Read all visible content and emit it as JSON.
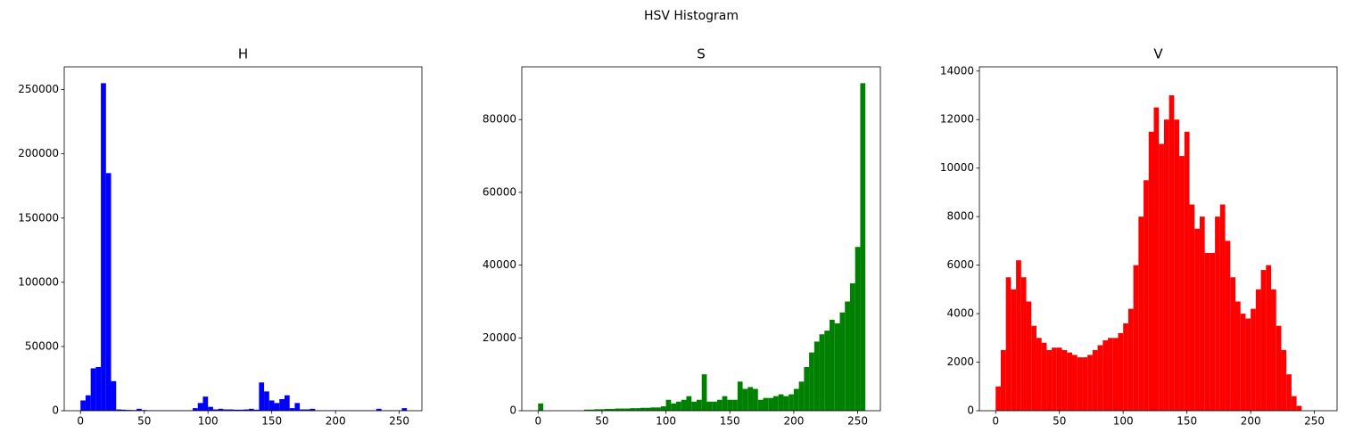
{
  "title": "HSV Histogram",
  "chart_data": [
    {
      "type": "histogram",
      "title": "H",
      "color": "#0000ff",
      "bins": [
        0,
        4,
        8,
        12,
        16,
        20,
        24,
        28,
        32,
        36,
        40,
        44,
        48,
        52,
        56,
        60,
        64,
        68,
        72,
        76,
        80,
        84,
        88,
        92,
        96,
        100,
        104,
        108,
        112,
        116,
        120,
        124,
        128,
        132,
        136,
        140,
        144,
        148,
        152,
        156,
        160,
        164,
        168,
        172,
        176,
        180,
        184,
        188,
        192,
        196,
        200,
        204,
        208,
        212,
        216,
        220,
        224,
        228,
        232,
        236,
        240,
        244,
        248,
        252,
        256
      ],
      "values": [
        8000,
        12000,
        33000,
        34000,
        255000,
        185000,
        23000,
        1000,
        800,
        600,
        500,
        1500,
        500,
        300,
        300,
        300,
        300,
        300,
        300,
        300,
        300,
        300,
        2000,
        6000,
        11000,
        3000,
        1000,
        1500,
        1000,
        1000,
        800,
        800,
        1000,
        1500,
        800,
        22000,
        15000,
        8000,
        6000,
        9000,
        12000,
        2000,
        6000,
        1000,
        1000,
        1500,
        300,
        300,
        300,
        300,
        300,
        300,
        300,
        300,
        300,
        300,
        300,
        300,
        1500,
        300,
        300,
        300,
        300,
        2000
      ],
      "xlim": [
        -12.75,
        267.75
      ],
      "xticks": [
        0,
        50,
        100,
        150,
        200,
        250
      ],
      "ylim": [
        0,
        267750
      ],
      "yticks": [
        0,
        50000,
        100000,
        150000,
        200000,
        250000
      ]
    },
    {
      "type": "histogram",
      "title": "S",
      "color": "#008000",
      "bins": [
        0,
        4,
        8,
        12,
        16,
        20,
        24,
        28,
        32,
        36,
        40,
        44,
        48,
        52,
        56,
        60,
        64,
        68,
        72,
        76,
        80,
        84,
        88,
        92,
        96,
        100,
        104,
        108,
        112,
        116,
        120,
        124,
        128,
        132,
        136,
        140,
        144,
        148,
        152,
        156,
        160,
        164,
        168,
        172,
        176,
        180,
        184,
        188,
        192,
        196,
        200,
        204,
        208,
        212,
        216,
        220,
        224,
        228,
        232,
        236,
        240,
        244,
        248,
        252,
        256
      ],
      "values": [
        2000,
        0,
        0,
        0,
        0,
        0,
        0,
        0,
        0,
        300,
        300,
        400,
        400,
        500,
        500,
        600,
        600,
        600,
        700,
        700,
        800,
        800,
        900,
        900,
        1200,
        3000,
        2000,
        2500,
        3000,
        4000,
        2500,
        3000,
        10000,
        2500,
        2500,
        3000,
        4000,
        3000,
        3000,
        8000,
        6000,
        6500,
        6000,
        3000,
        3500,
        3500,
        4000,
        4500,
        4000,
        4500,
        6000,
        8000,
        12000,
        16000,
        19000,
        21000,
        22000,
        25000,
        24000,
        27000,
        30000,
        35000,
        45000,
        90000
      ],
      "xlim": [
        -12.75,
        267.75
      ],
      "xticks": [
        0,
        50,
        100,
        150,
        200,
        250
      ],
      "ylim": [
        0,
        94500
      ],
      "yticks": [
        0,
        20000,
        40000,
        60000,
        80000
      ]
    },
    {
      "type": "histogram",
      "title": "V",
      "color": "#ff0000",
      "bins": [
        0,
        4,
        8,
        12,
        16,
        20,
        24,
        28,
        32,
        36,
        40,
        44,
        48,
        52,
        56,
        60,
        64,
        68,
        72,
        76,
        80,
        84,
        88,
        92,
        96,
        100,
        104,
        108,
        112,
        116,
        120,
        124,
        128,
        132,
        136,
        140,
        144,
        148,
        152,
        156,
        160,
        164,
        168,
        172,
        176,
        180,
        184,
        188,
        192,
        196,
        200,
        204,
        208,
        212,
        216,
        220,
        224,
        228,
        232,
        236,
        240,
        244,
        248,
        252,
        256
      ],
      "values": [
        1000,
        2500,
        5500,
        5000,
        6200,
        5500,
        4500,
        3500,
        3000,
        2800,
        2500,
        2600,
        2600,
        2500,
        2400,
        2300,
        2200,
        2200,
        2300,
        2500,
        2700,
        2900,
        3000,
        3000,
        3200,
        3600,
        4200,
        6000,
        8000,
        9500,
        11500,
        12500,
        11000,
        12000,
        13000,
        12000,
        10500,
        11500,
        8500,
        7500,
        8000,
        6500,
        6500,
        8000,
        8500,
        7000,
        5500,
        4500,
        4000,
        3800,
        4200,
        5000,
        5800,
        6000,
        5000,
        3500,
        2500,
        1500,
        600,
        200,
        0,
        0,
        0,
        0
      ],
      "xlim": [
        -12.75,
        267.75
      ],
      "xticks": [
        0,
        50,
        100,
        150,
        200,
        250
      ],
      "ylim": [
        0,
        14175
      ],
      "yticks": [
        0,
        2000,
        4000,
        6000,
        8000,
        10000,
        12000,
        14000
      ]
    }
  ]
}
